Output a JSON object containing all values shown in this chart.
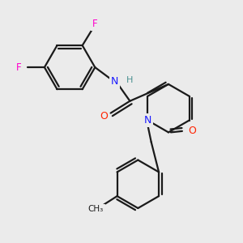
{
  "bg_color": "#ebebeb",
  "bond_color": "#1a1a1a",
  "bond_width": 1.6,
  "F_color": "#ff00cc",
  "N_color": "#1a1aff",
  "O_color": "#ff2200",
  "H_color": "#4a9090",
  "figsize": [
    3.0,
    3.0
  ],
  "dpi": 100,
  "xlim": [
    0,
    10
  ],
  "ylim": [
    0,
    10
  ]
}
